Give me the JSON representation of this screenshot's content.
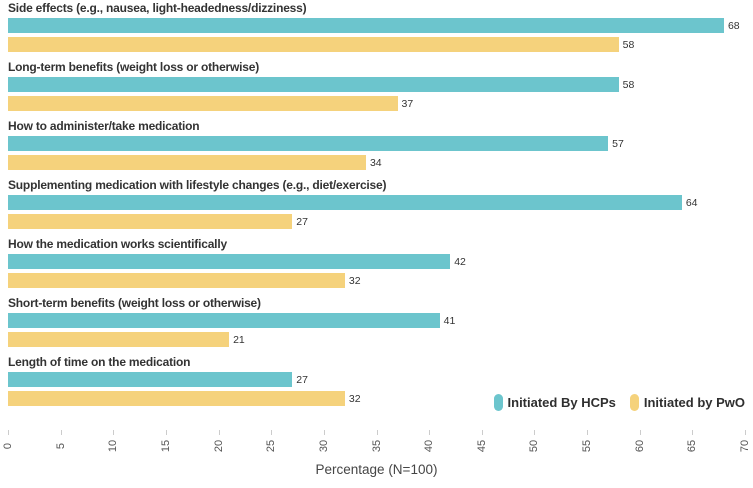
{
  "chart_data": {
    "type": "bar",
    "orientation": "horizontal",
    "title": "",
    "xlabel": "Percentage (N=100)",
    "ylabel": "",
    "xlim": [
      0,
      70
    ],
    "xticks": [
      0,
      5,
      10,
      15,
      20,
      25,
      30,
      35,
      40,
      45,
      50,
      55,
      60,
      65,
      70
    ],
    "grid": false,
    "legend_position": "bottom-right",
    "categories": [
      "Side effects (e.g., nausea, light-headedness/dizziness)",
      "Long-term benefits (weight loss or otherwise)",
      "How to administer/take medication",
      "Supplementing medication with lifestyle changes (e.g., diet/exercise)",
      "How the medication works scientifically",
      "Short-term benefits (weight loss or otherwise)",
      "Length of time on the medication"
    ],
    "series": [
      {
        "name": "Initiated By HCPs",
        "color": "#6cc5cd",
        "values": [
          68,
          58,
          57,
          64,
          42,
          41,
          27
        ]
      },
      {
        "name": "Initiated by PwO",
        "color": "#f5d27c",
        "values": [
          58,
          37,
          34,
          27,
          32,
          21,
          32
        ]
      }
    ]
  }
}
